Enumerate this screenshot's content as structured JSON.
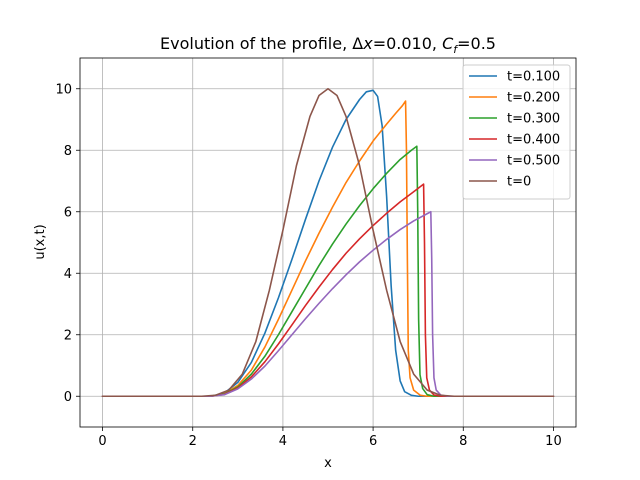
{
  "chart_data": {
    "type": "line",
    "title": "Evolution of the profile, Δx=0.010, C_f=0.5",
    "title_parts": {
      "prefix": "Evolution of the profile, ",
      "dx_symbol": "Δ",
      "dx_var": "x",
      "dx_value": "=0.010, ",
      "cf_var": "C",
      "cf_sub": "f",
      "cf_value": "=0.5"
    },
    "xlabel": "x",
    "ylabel": "u(x,t)",
    "xlim": [
      -0.5,
      10.5
    ],
    "ylim": [
      -1,
      11
    ],
    "xticks": [
      0,
      2,
      4,
      6,
      8,
      10
    ],
    "yticks": [
      0,
      2,
      4,
      6,
      8,
      10
    ],
    "grid": true,
    "legend_position": "top-right",
    "series": [
      {
        "name": "t=0.100",
        "color": "#1f77b4",
        "points": [
          [
            0,
            0
          ],
          [
            2.4,
            0
          ],
          [
            2.7,
            0.1
          ],
          [
            3.0,
            0.45
          ],
          [
            3.3,
            1.1
          ],
          [
            3.6,
            2.05
          ],
          [
            3.9,
            3.2
          ],
          [
            4.2,
            4.45
          ],
          [
            4.5,
            5.75
          ],
          [
            4.8,
            7.0
          ],
          [
            5.1,
            8.1
          ],
          [
            5.4,
            9.0
          ],
          [
            5.7,
            9.65
          ],
          [
            5.85,
            9.9
          ],
          [
            6.0,
            9.95
          ],
          [
            6.1,
            9.75
          ],
          [
            6.2,
            8.8
          ],
          [
            6.3,
            6.5
          ],
          [
            6.4,
            3.6
          ],
          [
            6.5,
            1.5
          ],
          [
            6.6,
            0.5
          ],
          [
            6.7,
            0.15
          ],
          [
            6.85,
            0.03
          ],
          [
            7.0,
            0
          ],
          [
            10,
            0
          ]
        ]
      },
      {
        "name": "t=0.200",
        "color": "#ff7f0e",
        "points": [
          [
            0,
            0
          ],
          [
            2.4,
            0
          ],
          [
            2.7,
            0.08
          ],
          [
            3.0,
            0.35
          ],
          [
            3.3,
            0.85
          ],
          [
            3.6,
            1.6
          ],
          [
            3.9,
            2.5
          ],
          [
            4.2,
            3.45
          ],
          [
            4.5,
            4.4
          ],
          [
            4.8,
            5.3
          ],
          [
            5.1,
            6.15
          ],
          [
            5.4,
            6.95
          ],
          [
            5.7,
            7.65
          ],
          [
            6.0,
            8.3
          ],
          [
            6.3,
            8.85
          ],
          [
            6.5,
            9.2
          ],
          [
            6.65,
            9.45
          ],
          [
            6.72,
            9.6
          ],
          [
            6.74,
            8.0
          ],
          [
            6.76,
            4.5
          ],
          [
            6.78,
            1.5
          ],
          [
            6.82,
            0.6
          ],
          [
            6.9,
            0.2
          ],
          [
            7.05,
            0.03
          ],
          [
            7.2,
            0
          ],
          [
            10,
            0
          ]
        ]
      },
      {
        "name": "t=0.300",
        "color": "#2ca02c",
        "points": [
          [
            0,
            0
          ],
          [
            2.4,
            0
          ],
          [
            2.7,
            0.07
          ],
          [
            3.0,
            0.3
          ],
          [
            3.3,
            0.72
          ],
          [
            3.6,
            1.3
          ],
          [
            3.9,
            2.0
          ],
          [
            4.2,
            2.75
          ],
          [
            4.5,
            3.5
          ],
          [
            4.8,
            4.25
          ],
          [
            5.1,
            4.95
          ],
          [
            5.4,
            5.6
          ],
          [
            5.7,
            6.2
          ],
          [
            6.0,
            6.75
          ],
          [
            6.3,
            7.25
          ],
          [
            6.6,
            7.7
          ],
          [
            6.85,
            8.0
          ],
          [
            6.97,
            8.13
          ],
          [
            6.99,
            6.0
          ],
          [
            7.01,
            2.5
          ],
          [
            7.04,
            0.7
          ],
          [
            7.1,
            0.25
          ],
          [
            7.2,
            0.05
          ],
          [
            7.35,
            0
          ],
          [
            10,
            0
          ]
        ]
      },
      {
        "name": "t=0.400",
        "color": "#d62728",
        "points": [
          [
            0,
            0
          ],
          [
            2.4,
            0
          ],
          [
            2.7,
            0.06
          ],
          [
            3.0,
            0.27
          ],
          [
            3.3,
            0.63
          ],
          [
            3.6,
            1.12
          ],
          [
            3.9,
            1.7
          ],
          [
            4.2,
            2.32
          ],
          [
            4.5,
            2.95
          ],
          [
            4.8,
            3.55
          ],
          [
            5.1,
            4.12
          ],
          [
            5.4,
            4.65
          ],
          [
            5.7,
            5.12
          ],
          [
            6.0,
            5.55
          ],
          [
            6.3,
            5.95
          ],
          [
            6.6,
            6.32
          ],
          [
            6.9,
            6.65
          ],
          [
            7.12,
            6.9
          ],
          [
            7.14,
            5.0
          ],
          [
            7.16,
            2.0
          ],
          [
            7.19,
            0.6
          ],
          [
            7.25,
            0.2
          ],
          [
            7.35,
            0.04
          ],
          [
            7.5,
            0
          ],
          [
            10,
            0
          ]
        ]
      },
      {
        "name": "t=0.500",
        "color": "#9467bd",
        "points": [
          [
            0,
            0
          ],
          [
            2.4,
            0
          ],
          [
            2.7,
            0.05
          ],
          [
            3.0,
            0.24
          ],
          [
            3.3,
            0.56
          ],
          [
            3.6,
            0.98
          ],
          [
            3.9,
            1.48
          ],
          [
            4.2,
            2.0
          ],
          [
            4.5,
            2.52
          ],
          [
            4.8,
            3.02
          ],
          [
            5.1,
            3.5
          ],
          [
            5.4,
            3.95
          ],
          [
            5.7,
            4.37
          ],
          [
            6.0,
            4.75
          ],
          [
            6.3,
            5.1
          ],
          [
            6.6,
            5.42
          ],
          [
            6.9,
            5.7
          ],
          [
            7.28,
            6.0
          ],
          [
            7.3,
            4.5
          ],
          [
            7.32,
            2.0
          ],
          [
            7.35,
            0.6
          ],
          [
            7.4,
            0.2
          ],
          [
            7.5,
            0.04
          ],
          [
            7.65,
            0
          ],
          [
            10,
            0
          ]
        ]
      },
      {
        "name": "t=0",
        "color": "#8c564b",
        "points": [
          [
            0,
            0
          ],
          [
            2.2,
            0
          ],
          [
            2.5,
            0.03
          ],
          [
            2.8,
            0.2
          ],
          [
            3.1,
            0.72
          ],
          [
            3.4,
            1.78
          ],
          [
            3.7,
            3.45
          ],
          [
            4.0,
            5.4
          ],
          [
            4.3,
            7.5
          ],
          [
            4.6,
            9.1
          ],
          [
            4.8,
            9.78
          ],
          [
            5.0,
            10.0
          ],
          [
            5.2,
            9.78
          ],
          [
            5.4,
            9.1
          ],
          [
            5.7,
            7.5
          ],
          [
            6.0,
            5.4
          ],
          [
            6.3,
            3.45
          ],
          [
            6.6,
            1.78
          ],
          [
            6.9,
            0.72
          ],
          [
            7.2,
            0.2
          ],
          [
            7.5,
            0.03
          ],
          [
            7.8,
            0
          ],
          [
            10,
            0
          ]
        ]
      }
    ]
  }
}
